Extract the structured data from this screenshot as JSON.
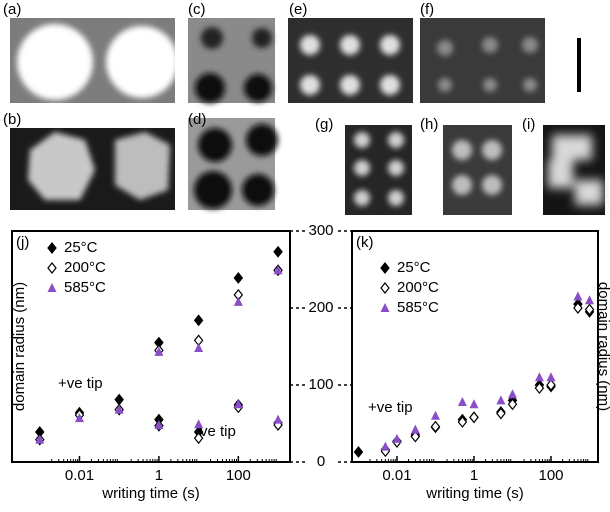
{
  "panel_labels": [
    "(a)",
    "(b)",
    "(c)",
    "(d)",
    "(e)",
    "(f)",
    "(g)",
    "(h)",
    "(i)"
  ],
  "chart_data": [
    {
      "type": "scatter",
      "label": "(j)",
      "xlabel": "writing time (s)",
      "ylabel": "domain radius (nm)",
      "log_x": true,
      "xlim": [
        0.0002,
        2000
      ],
      "xticks": [
        {
          "value": 0.01,
          "label": "0.01"
        },
        1,
        100
      ],
      "ylim": [
        0,
        300
      ],
      "yticks": [
        0,
        100,
        200,
        300
      ],
      "x": [
        0.001,
        0.01,
        0.1,
        1,
        10,
        100,
        1000,
        1,
        10,
        100,
        1000
      ],
      "series": [
        {
          "name": "25°C",
          "color": "#000000",
          "marker": "diamond",
          "values": [
            39,
            64,
            81,
            155,
            184,
            239,
            273,
            55,
            39,
            74,
            51
          ]
        },
        {
          "name": "200°C",
          "color": "#000000",
          "marker": "open-diamond",
          "values": [
            29,
            61,
            68,
            145,
            158,
            217,
            249,
            47,
            31,
            71,
            48
          ]
        },
        {
          "name": "585°C",
          "color": "#8a4fc8",
          "marker": "triangle",
          "values": [
            29,
            57,
            68,
            143,
            148,
            208,
            249,
            48,
            49,
            75,
            55
          ]
        }
      ],
      "annotations": [
        "+ve tip",
        "-ve tip"
      ]
    },
    {
      "type": "scatter",
      "label": "(k)",
      "xlabel": "writing time (s)",
      "ylabel": "domain radius (nm)",
      "log_x": true,
      "xlim": [
        0.00068,
        1660
      ],
      "xticks": [
        {
          "value": 0.01,
          "label": "0.01"
        },
        1,
        100
      ],
      "ylim": [
        0,
        300
      ],
      "x": [
        0.001,
        0.005,
        0.01,
        0.03,
        0.1,
        0.5,
        1,
        5,
        10,
        50,
        100,
        500,
        1000
      ],
      "series": [
        {
          "name": "25°C",
          "color": "#000000",
          "marker": "diamond",
          "values": [
            13,
            16,
            27,
            35,
            45,
            55,
            58,
            65,
            80,
            100,
            98,
            205,
            195
          ]
        },
        {
          "name": "200°C",
          "color": "#000000",
          "marker": "open-diamond",
          "values": [
            null,
            14,
            26,
            33,
            46,
            52,
            58,
            63,
            75,
            96,
            100,
            200,
            198
          ]
        },
        {
          "name": "585°C",
          "color": "#8a4fc8",
          "marker": "triangle",
          "values": [
            null,
            20,
            30,
            42,
            60,
            78,
            75,
            80,
            88,
            110,
            110,
            215,
            210
          ]
        }
      ],
      "annotations": [
        "+ve tip"
      ]
    }
  ]
}
